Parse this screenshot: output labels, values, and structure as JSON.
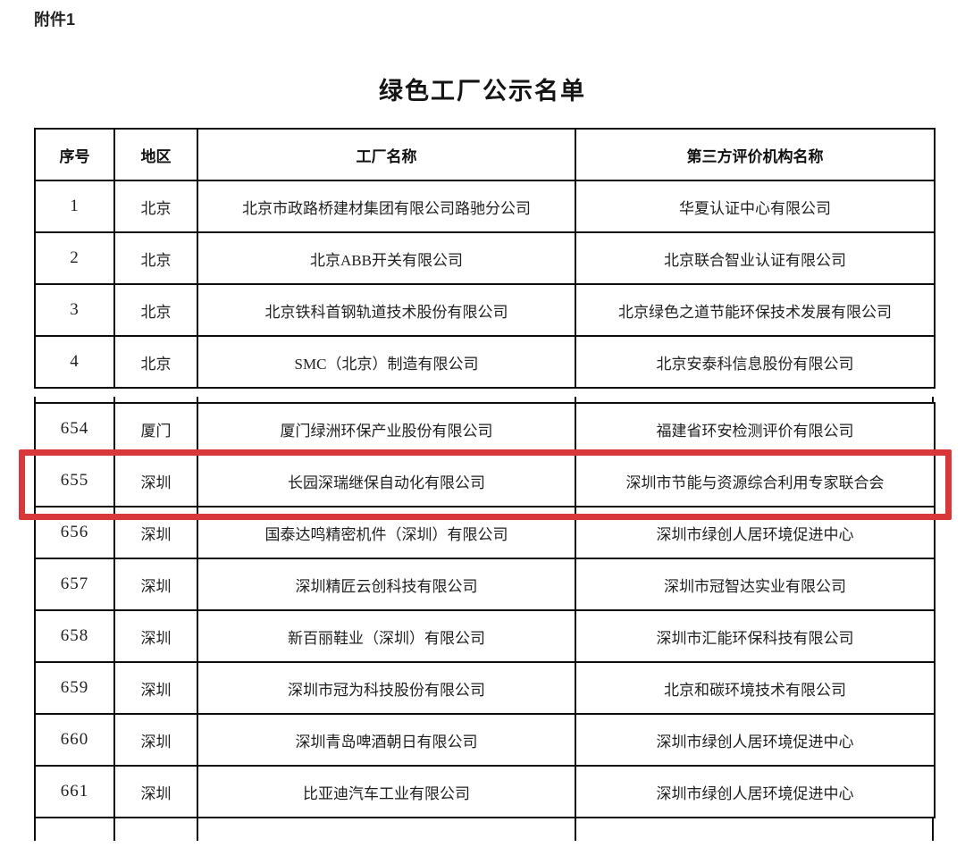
{
  "page": {
    "attachment_label": "附件1",
    "title": "绿色工厂公示名单"
  },
  "table": {
    "headers": [
      "序号",
      "地区",
      "工厂名称",
      "第三方评价机构名称"
    ],
    "sections": [
      {
        "rows": [
          {
            "no": "1",
            "region": "北京",
            "factory": "北京市政路桥建材集团有限公司路驰分公司",
            "agency": "华夏认证中心有限公司"
          },
          {
            "no": "2",
            "region": "北京",
            "factory": "北京ABB开关有限公司",
            "agency": "北京联合智业认证有限公司"
          },
          {
            "no": "3",
            "region": "北京",
            "factory": "北京铁科首钢轨道技术股份有限公司",
            "agency": "北京绿色之道节能环保技术发展有限公司"
          },
          {
            "no": "4",
            "region": "北京",
            "factory": "SMC（北京）制造有限公司",
            "agency": "北京安泰科信息股份有限公司"
          }
        ]
      },
      {
        "rows": [
          {
            "no": "654",
            "region": "厦门",
            "factory": "厦门绿洲环保产业股份有限公司",
            "agency": "福建省环安检测评价有限公司"
          },
          {
            "no": "655",
            "region": "深圳",
            "factory": "长园深瑞继保自动化有限公司",
            "agency": "深圳市节能与资源综合利用专家联合会"
          },
          {
            "no": "656",
            "region": "深圳",
            "factory": "国泰达鸣精密机件（深圳）有限公司",
            "agency": "深圳市绿创人居环境促进中心"
          },
          {
            "no": "657",
            "region": "深圳",
            "factory": "深圳精匠云创科技有限公司",
            "agency": "深圳市冠智达实业有限公司"
          },
          {
            "no": "658",
            "region": "深圳",
            "factory": "新百丽鞋业（深圳）有限公司",
            "agency": "深圳市汇能环保科技有限公司"
          },
          {
            "no": "659",
            "region": "深圳",
            "factory": "深圳市冠为科技股份有限公司",
            "agency": "北京和碳环境技术有限公司"
          },
          {
            "no": "660",
            "region": "深圳",
            "factory": "深圳青岛啤酒朝日有限公司",
            "agency": "深圳市绿创人居环境促进中心"
          },
          {
            "no": "661",
            "region": "深圳",
            "factory": "比亚迪汽车工业有限公司",
            "agency": "深圳市绿创人居环境促进中心"
          }
        ]
      }
    ],
    "highlight": {
      "highlighted_row_no": "655",
      "color": "#d9383b"
    }
  }
}
